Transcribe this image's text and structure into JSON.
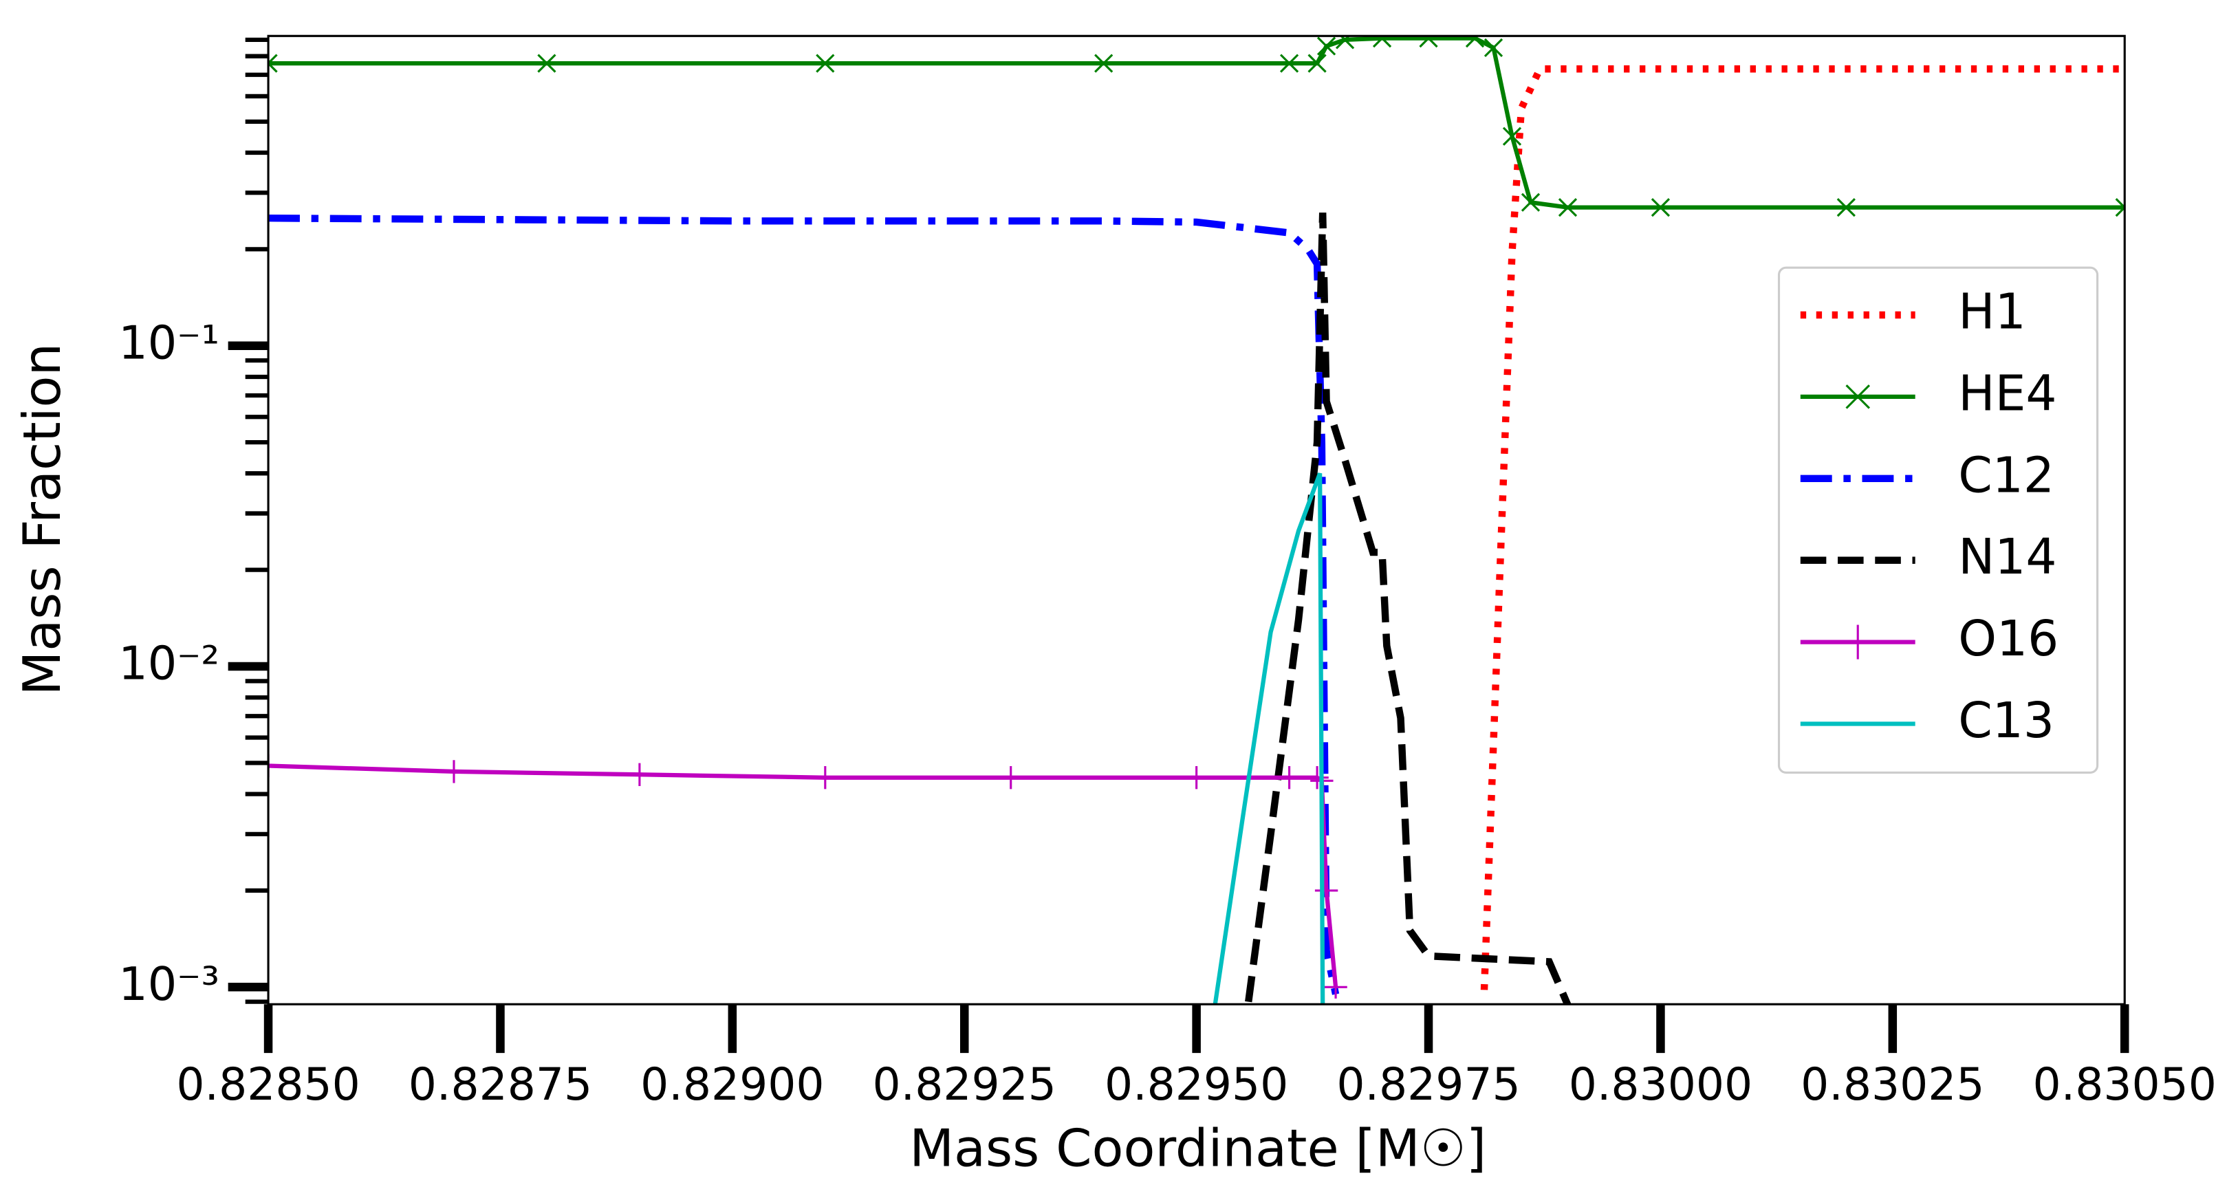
{
  "chart_data": {
    "type": "line",
    "x_label": "Mass Coordinate [M☉]",
    "y_label": "Mass Fraction",
    "y_scale": "log",
    "legend_position": "center right",
    "xlim": [
      0.8285,
      0.8305
    ],
    "ylim": [
      0.000884,
      0.925
    ],
    "xticks": [
      {
        "value": 0.8285,
        "label": "0.82850"
      },
      {
        "value": 0.82875,
        "label": "0.82875"
      },
      {
        "value": 0.829,
        "label": "0.82900"
      },
      {
        "value": 0.82925,
        "label": "0.82925"
      },
      {
        "value": 0.8295,
        "label": "0.82950"
      },
      {
        "value": 0.82975,
        "label": "0.82975"
      },
      {
        "value": 0.83,
        "label": "0.83000"
      },
      {
        "value": 0.83025,
        "label": "0.83025"
      },
      {
        "value": 0.8305,
        "label": "0.83050"
      }
    ],
    "yticks": [
      {
        "value": 0.001,
        "label": "10⁻³"
      },
      {
        "value": 0.01,
        "label": "10⁻²"
      },
      {
        "value": 0.1,
        "label": "10⁻¹"
      }
    ],
    "series": [
      {
        "name": "H1",
        "color": "#ff0000",
        "linestyle": "dotted",
        "x": [
          0.82981,
          0.82982,
          0.82983,
          0.82984,
          0.82985,
          0.82987,
          0.83,
          0.8305
        ],
        "values": [
          0.00098,
          0.0058,
          0.034,
          0.195,
          0.55,
          0.73,
          0.73,
          0.73
        ]
      },
      {
        "name": "HE4",
        "color": "#008000",
        "linestyle": "solid",
        "marker": "x",
        "x": [
          0.8285,
          0.8288,
          0.8291,
          0.8294,
          0.8296,
          0.82963,
          0.82964,
          0.82966,
          0.8297,
          0.82975,
          0.8298,
          0.82982,
          0.82984,
          0.82986,
          0.8299,
          0.83,
          0.8302,
          0.8305
        ],
        "values": [
          0.76,
          0.76,
          0.76,
          0.76,
          0.76,
          0.76,
          0.86,
          0.9,
          0.91,
          0.91,
          0.91,
          0.85,
          0.45,
          0.28,
          0.27,
          0.27,
          0.27,
          0.27
        ]
      },
      {
        "name": "C12",
        "color": "#0000ff",
        "linestyle": "dashdot",
        "x": [
          0.8285,
          0.829,
          0.8294,
          0.8295,
          0.8296,
          0.82962,
          0.82963,
          0.829635,
          0.82964,
          0.82965
        ],
        "values": [
          0.25,
          0.245,
          0.245,
          0.243,
          0.225,
          0.2,
          0.18,
          0.05,
          0.0013,
          0.00095
        ]
      },
      {
        "name": "N14",
        "color": "#000000",
        "linestyle": "dashed",
        "x": [
          0.829556,
          0.82958,
          0.82961,
          0.82963,
          0.829636,
          0.82964,
          0.82966,
          0.82969,
          0.8297,
          0.829705,
          0.82972,
          0.82973,
          0.82975,
          0.82988,
          0.8299
        ],
        "values": [
          0.0009,
          0.003,
          0.014,
          0.05,
          0.26,
          0.067,
          0.044,
          0.0227,
          0.0227,
          0.0116,
          0.0069,
          0.0015,
          0.00125,
          0.0012,
          0.00088
        ]
      },
      {
        "name": "O16",
        "color": "#bf00bf",
        "linestyle": "solid",
        "marker": "+",
        "x": [
          0.8285,
          0.8287,
          0.8289,
          0.8291,
          0.8293,
          0.8295,
          0.8296,
          0.82963,
          0.829635,
          0.82964,
          0.82965
        ],
        "values": [
          0.0049,
          0.0047,
          0.0046,
          0.0045,
          0.0045,
          0.0045,
          0.0045,
          0.0045,
          0.0044,
          0.002,
          0.001
        ]
      },
      {
        "name": "C13",
        "color": "#00bfbf",
        "linestyle": "solid",
        "x": [
          0.82952,
          0.82955,
          0.82958,
          0.82961,
          0.829633,
          0.829636
        ],
        "values": [
          0.00088,
          0.0034,
          0.0128,
          0.0265,
          0.04,
          0.00088
        ]
      }
    ]
  }
}
